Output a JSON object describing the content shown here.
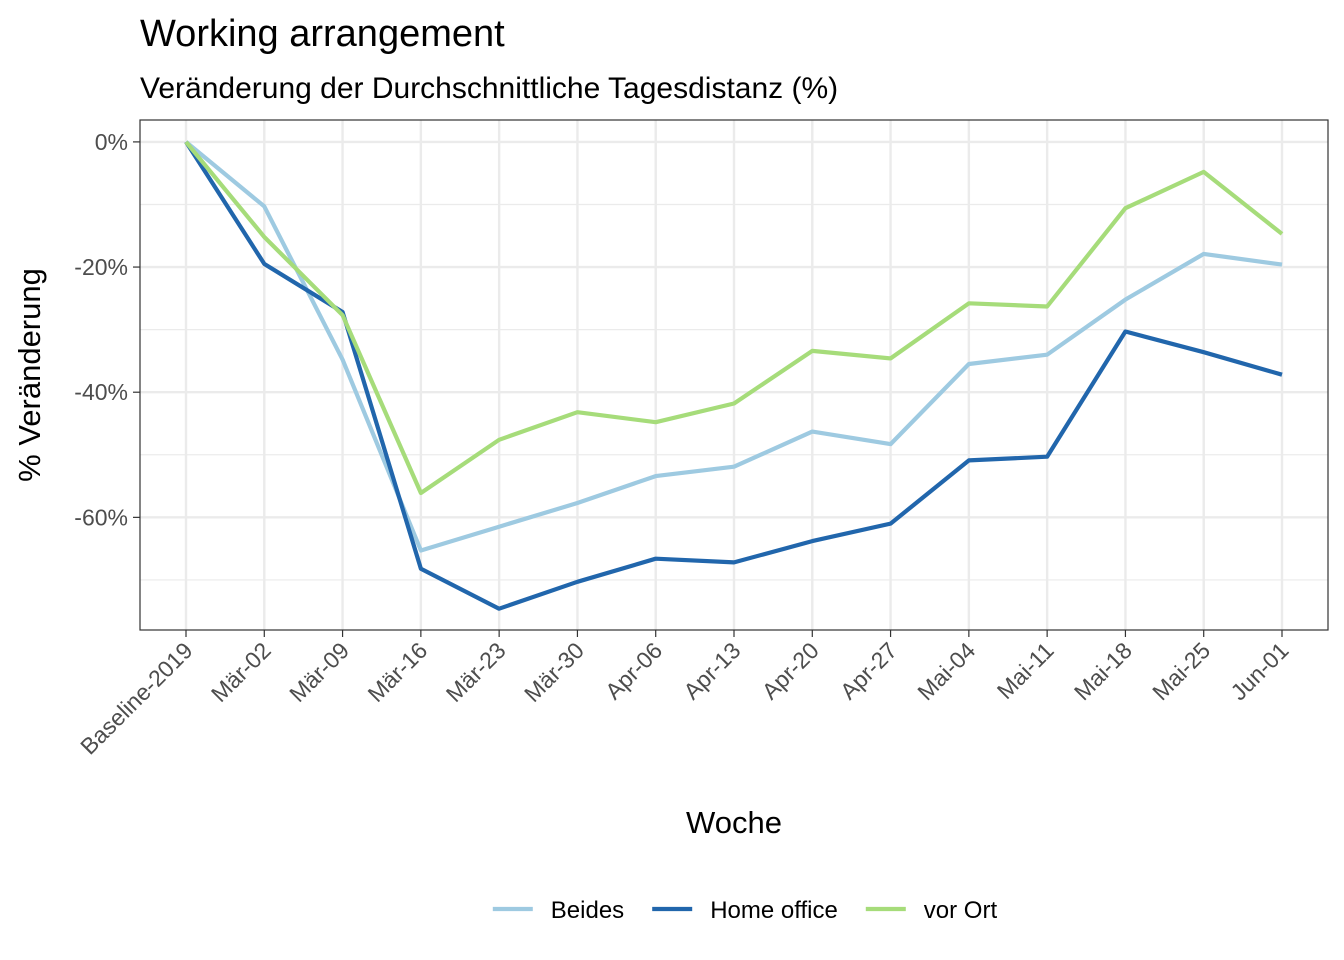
{
  "chart_data": {
    "type": "line",
    "title": "Working arrangement",
    "subtitle": "Veränderung der Durchschnittliche Tagesdistanz (%)",
    "xlabel": "Woche",
    "ylabel": "% Veränderung",
    "categories": [
      "Baseline-2019",
      "Mär-02",
      "Mär-09",
      "Mär-16",
      "Mär-23",
      "Mär-30",
      "Apr-06",
      "Apr-13",
      "Apr-20",
      "Apr-27",
      "Mai-04",
      "Mai-11",
      "Mai-18",
      "Mai-25",
      "Jun-01"
    ],
    "ylim": [
      -78,
      3.5
    ],
    "yticks": [
      0,
      -20,
      -40,
      -60
    ],
    "ytick_labels": [
      "0%",
      "-20%",
      "-40%",
      "-60%"
    ],
    "grid": true,
    "legend_position": "bottom",
    "series": [
      {
        "name": "Beides",
        "color": "#9ecae1",
        "values": [
          0,
          -10.3,
          -34.8,
          -65.3,
          -61.5,
          -57.7,
          -53.4,
          -51.9,
          -46.3,
          -48.3,
          -35.5,
          -34.0,
          -25.2,
          -17.9,
          -19.6
        ]
      },
      {
        "name": "Home office",
        "color": "#2166ac",
        "values": [
          0,
          -19.5,
          -27.2,
          -68.2,
          -74.6,
          -70.3,
          -66.6,
          -67.2,
          -63.8,
          -61.0,
          -50.9,
          -50.3,
          -30.3,
          -33.6,
          -37.2
        ]
      },
      {
        "name": "vor Ort",
        "color": "#a6dc7a",
        "values": [
          0,
          -15.2,
          -27.7,
          -56.1,
          -47.6,
          -43.2,
          -44.8,
          -41.8,
          -33.4,
          -34.6,
          -25.8,
          -26.3,
          -10.6,
          -4.8,
          -14.7
        ]
      }
    ]
  }
}
